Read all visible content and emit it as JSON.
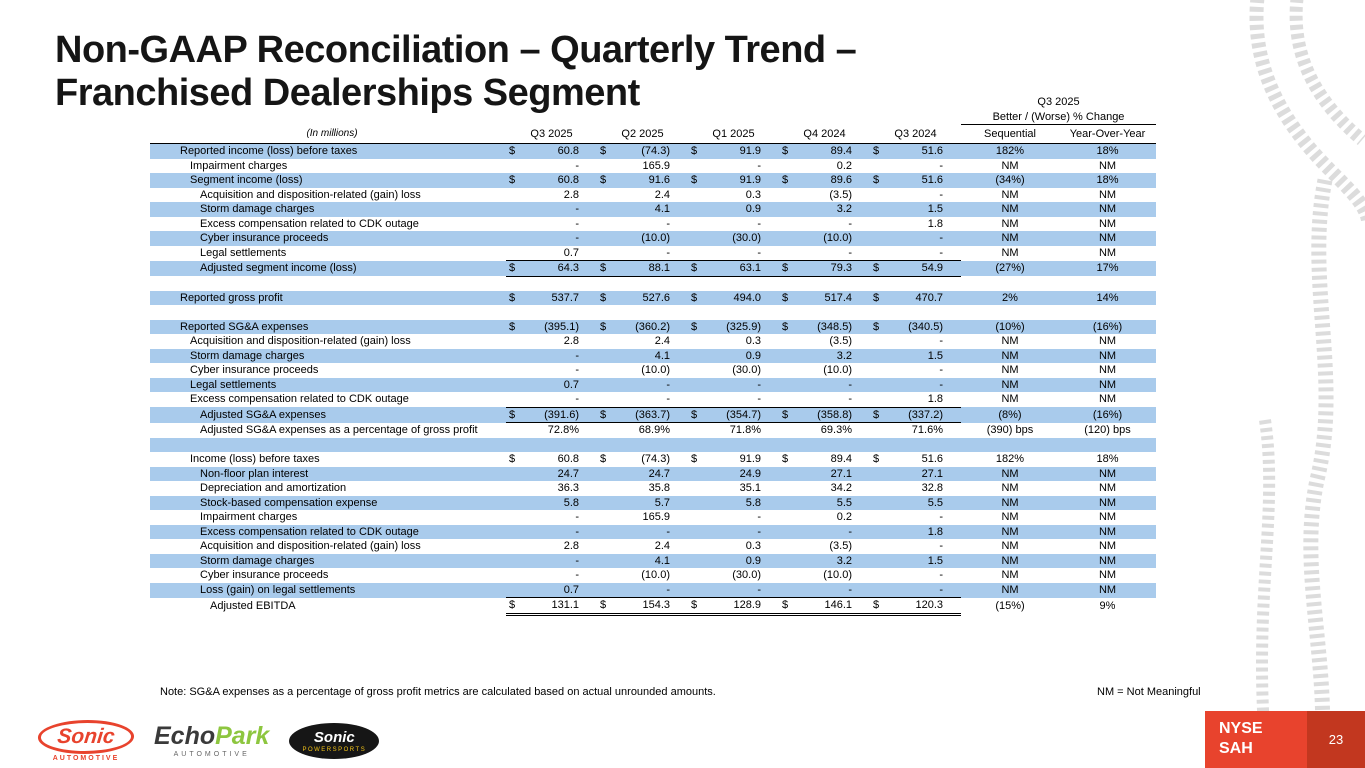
{
  "slide": {
    "title_line1": "Non-GAAP Reconciliation – Quarterly Trend –",
    "title_line2": "Franchised Dealerships Segment",
    "note": "Note: SG&A expenses as a percentage of gross profit metrics are calculated based on actual unrounded amounts.",
    "nm_note": "NM = Not Meaningful"
  },
  "table": {
    "header": {
      "group_line1": "Q3 2025",
      "group_line2": "Better / (Worse) % Change",
      "in_millions": "(In millions)",
      "columns": [
        "Q3 2025",
        "Q2 2025",
        "Q1 2025",
        "Q4 2024",
        "Q3 2024",
        "Sequential",
        "Year-Over-Year"
      ]
    },
    "rows": [
      {
        "label": "Reported income (loss) before taxes",
        "indent": 0,
        "dollar": true,
        "shaded": true,
        "values": [
          "60.8",
          "(74.3)",
          "91.9",
          "89.4",
          "51.6"
        ],
        "seq": "182%",
        "yoy": "18%"
      },
      {
        "label": "Impairment charges",
        "indent": 1,
        "dollar": false,
        "shaded": false,
        "values": [
          "-",
          "165.9",
          "-",
          "0.2",
          "-"
        ],
        "seq": "NM",
        "yoy": "NM"
      },
      {
        "label": "Segment income (loss)",
        "indent": 1,
        "dollar": true,
        "shaded": true,
        "values": [
          "60.8",
          "91.6",
          "91.9",
          "89.6",
          "51.6"
        ],
        "seq": "(34%)",
        "yoy": "18%"
      },
      {
        "label": "Acquisition and disposition-related (gain) loss",
        "indent": 2,
        "dollar": false,
        "shaded": false,
        "values": [
          "2.8",
          "2.4",
          "0.3",
          "(3.5)",
          "-"
        ],
        "seq": "NM",
        "yoy": "NM"
      },
      {
        "label": "Storm damage charges",
        "indent": 2,
        "dollar": false,
        "shaded": true,
        "values": [
          "-",
          "4.1",
          "0.9",
          "3.2",
          "1.5"
        ],
        "seq": "NM",
        "yoy": "NM"
      },
      {
        "label": "Excess compensation related to CDK outage",
        "indent": 2,
        "dollar": false,
        "shaded": false,
        "values": [
          "-",
          "-",
          "-",
          "-",
          "1.8"
        ],
        "seq": "NM",
        "yoy": "NM"
      },
      {
        "label": "Cyber insurance proceeds",
        "indent": 2,
        "dollar": false,
        "shaded": true,
        "values": [
          "-",
          "(10.0)",
          "(30.0)",
          "(10.0)",
          "-"
        ],
        "seq": "NM",
        "yoy": "NM"
      },
      {
        "label": "Legal settlements",
        "indent": 2,
        "dollar": false,
        "shaded": false,
        "values": [
          "0.7",
          "-",
          "-",
          "-",
          "-"
        ],
        "seq": "NM",
        "yoy": "NM"
      },
      {
        "label": "Adjusted segment income (loss)",
        "indent": 2,
        "dollar": true,
        "shaded": true,
        "border": "box",
        "values": [
          "64.3",
          "88.1",
          "63.1",
          "79.3",
          "54.9"
        ],
        "seq": "(27%)",
        "yoy": "17%"
      },
      {
        "blank": true,
        "shaded": false
      },
      {
        "label": "Reported gross profit",
        "indent": 0,
        "dollar": true,
        "shaded": true,
        "values": [
          "537.7",
          "527.6",
          "494.0",
          "517.4",
          "470.7"
        ],
        "seq": "2%",
        "yoy": "14%"
      },
      {
        "blank": true,
        "shaded": false
      },
      {
        "label": "Reported SG&A expenses",
        "indent": 0,
        "dollar": true,
        "shaded": true,
        "values": [
          "(395.1)",
          "(360.2)",
          "(325.9)",
          "(348.5)",
          "(340.5)"
        ],
        "seq": "(10%)",
        "yoy": "(16%)"
      },
      {
        "label": "Acquisition and disposition-related (gain) loss",
        "indent": 1,
        "dollar": false,
        "shaded": false,
        "values": [
          "2.8",
          "2.4",
          "0.3",
          "(3.5)",
          "-"
        ],
        "seq": "NM",
        "yoy": "NM"
      },
      {
        "label": "Storm damage charges",
        "indent": 1,
        "dollar": false,
        "shaded": true,
        "values": [
          "-",
          "4.1",
          "0.9",
          "3.2",
          "1.5"
        ],
        "seq": "NM",
        "yoy": "NM"
      },
      {
        "label": "Cyber insurance proceeds",
        "indent": 1,
        "dollar": false,
        "shaded": false,
        "values": [
          "-",
          "(10.0)",
          "(30.0)",
          "(10.0)",
          "-"
        ],
        "seq": "NM",
        "yoy": "NM"
      },
      {
        "label": "Legal settlements",
        "indent": 1,
        "dollar": false,
        "shaded": true,
        "values": [
          "0.7",
          "-",
          "-",
          "-",
          "-"
        ],
        "seq": "NM",
        "yoy": "NM"
      },
      {
        "label": "Excess compensation related to CDK outage",
        "indent": 1,
        "dollar": false,
        "shaded": false,
        "values": [
          "-",
          "-",
          "-",
          "-",
          "1.8"
        ],
        "seq": "NM",
        "yoy": "NM"
      },
      {
        "label": "Adjusted SG&A expenses",
        "indent": 2,
        "dollar": true,
        "shaded": true,
        "border": "box",
        "values": [
          "(391.6)",
          "(363.7)",
          "(354.7)",
          "(358.8)",
          "(337.2)"
        ],
        "seq": "(8%)",
        "yoy": "(16%)"
      },
      {
        "label": "Adjusted SG&A expenses as a percentage of gross profit",
        "indent": 2,
        "dollar": false,
        "shaded": false,
        "values": [
          "72.8%",
          "68.9%",
          "71.8%",
          "69.3%",
          "71.6%"
        ],
        "seq": "(390) bps",
        "yoy": "(120) bps"
      },
      {
        "blank": true,
        "shaded": true
      },
      {
        "label": "Income (loss) before taxes",
        "indent": 1,
        "dollar": true,
        "shaded": false,
        "values": [
          "60.8",
          "(74.3)",
          "91.9",
          "89.4",
          "51.6"
        ],
        "seq": "182%",
        "yoy": "18%"
      },
      {
        "label": "Non-floor plan interest",
        "indent": 2,
        "dollar": false,
        "shaded": true,
        "values": [
          "24.7",
          "24.7",
          "24.9",
          "27.1",
          "27.1"
        ],
        "seq": "NM",
        "yoy": "NM"
      },
      {
        "label": "Depreciation and amortization",
        "indent": 2,
        "dollar": false,
        "shaded": false,
        "values": [
          "36.3",
          "35.8",
          "35.1",
          "34.2",
          "32.8"
        ],
        "seq": "NM",
        "yoy": "NM"
      },
      {
        "label": "Stock-based compensation expense",
        "indent": 2,
        "dollar": false,
        "shaded": true,
        "values": [
          "5.8",
          "5.7",
          "5.8",
          "5.5",
          "5.5"
        ],
        "seq": "NM",
        "yoy": "NM"
      },
      {
        "label": "Impairment charges",
        "indent": 2,
        "dollar": false,
        "shaded": false,
        "values": [
          "-",
          "165.9",
          "-",
          "0.2",
          "-"
        ],
        "seq": "NM",
        "yoy": "NM"
      },
      {
        "label": "Excess compensation related to CDK outage",
        "indent": 2,
        "dollar": false,
        "shaded": true,
        "values": [
          "-",
          "-",
          "-",
          "-",
          "1.8"
        ],
        "seq": "NM",
        "yoy": "NM"
      },
      {
        "label": "Acquisition and disposition-related (gain) loss",
        "indent": 2,
        "dollar": false,
        "shaded": false,
        "values": [
          "2.8",
          "2.4",
          "0.3",
          "(3.5)",
          "-"
        ],
        "seq": "NM",
        "yoy": "NM"
      },
      {
        "label": "Storm damage charges",
        "indent": 2,
        "dollar": false,
        "shaded": true,
        "values": [
          "-",
          "4.1",
          "0.9",
          "3.2",
          "1.5"
        ],
        "seq": "NM",
        "yoy": "NM"
      },
      {
        "label": "Cyber insurance proceeds",
        "indent": 2,
        "dollar": false,
        "shaded": false,
        "values": [
          "-",
          "(10.0)",
          "(30.0)",
          "(10.0)",
          "-"
        ],
        "seq": "NM",
        "yoy": "NM"
      },
      {
        "label": "Loss (gain) on legal settlements",
        "indent": 2,
        "dollar": false,
        "shaded": true,
        "values": [
          "0.7",
          "-",
          "-",
          "-",
          "-"
        ],
        "seq": "NM",
        "yoy": "NM"
      },
      {
        "label": "Adjusted EBITDA",
        "indent": 3,
        "dollar": true,
        "shaded": false,
        "border": "total",
        "values": [
          "131.1",
          "154.3",
          "128.9",
          "146.1",
          "120.3"
        ],
        "seq": "(15%)",
        "yoy": "9%"
      }
    ]
  },
  "footer": {
    "logos": {
      "sonic_automotive": {
        "name": "Sonic",
        "sub": "AUTOMOTIVE"
      },
      "echopark": {
        "part1": "Echo",
        "part2": "Park",
        "sub": "AUTOMOTIVE"
      },
      "sonic_powersports": {
        "name": "Sonic",
        "sub": "POWERSPORTS"
      }
    },
    "ticker": {
      "line1": "NYSE",
      "line2": "SAH"
    },
    "page_number": "23"
  },
  "colors": {
    "row_highlight": "#a9cbec",
    "brand_red": "#e8432d",
    "page_box_red": "#c2371f"
  }
}
